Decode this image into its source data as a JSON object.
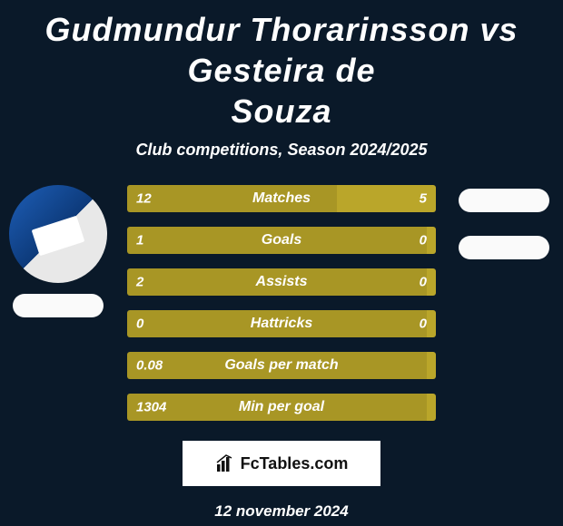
{
  "title_line1": "Gudmundur Thorarinsson vs Gesteira de",
  "title_line2": "Souza",
  "subtitle": "Club competitions, Season 2024/2025",
  "colors": {
    "bar_a": "#a89625",
    "bar_b": "#baa62a",
    "background": "#0a1929",
    "text": "#ffffff",
    "brand_bg": "#ffffff",
    "brand_text": "#111111"
  },
  "bars": [
    {
      "label": "Matches",
      "left_value": "12",
      "right_value": "5",
      "left_pct": 68,
      "right_pct": 32
    },
    {
      "label": "Goals",
      "left_value": "1",
      "right_value": "0",
      "left_pct": 97,
      "right_pct": 3
    },
    {
      "label": "Assists",
      "left_value": "2",
      "right_value": "0",
      "left_pct": 97,
      "right_pct": 3
    },
    {
      "label": "Hattricks",
      "left_value": "0",
      "right_value": "0",
      "left_pct": 97,
      "right_pct": 3
    },
    {
      "label": "Goals per match",
      "left_value": "0.08",
      "right_value": "",
      "left_pct": 97,
      "right_pct": 3
    },
    {
      "label": "Min per goal",
      "left_value": "1304",
      "right_value": "",
      "left_pct": 97,
      "right_pct": 3
    }
  ],
  "brand_text": "FcTables.com",
  "date_text": "12 november 2024"
}
